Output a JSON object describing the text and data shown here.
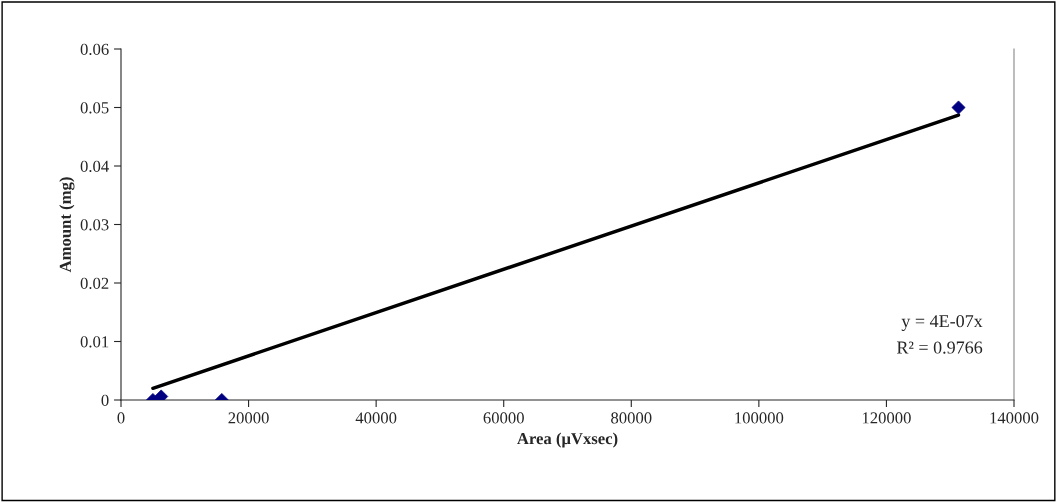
{
  "chart_data": {
    "type": "scatter",
    "xlabel": "Area (μVxsec)",
    "ylabel": "Amount (mg)",
    "series": [
      {
        "type": "scatter",
        "color": "#000080",
        "marker": "diamond",
        "x": [
          5000,
          6300,
          15800,
          131300
        ],
        "values": [
          0,
          0.0006,
          0,
          0.05
        ]
      },
      {
        "type": "line",
        "color": "#000000",
        "marker": "none",
        "line_style": "solid",
        "x": [
          5000,
          131300
        ],
        "values": [
          0.002,
          0.0487
        ]
      }
    ],
    "xlim": [
      0,
      140000
    ],
    "xticks": [
      0,
      20000,
      40000,
      60000,
      80000,
      100000,
      120000,
      140000
    ],
    "ylim": [
      0,
      0.06
    ],
    "yticks": [
      {
        "value": 0,
        "label": "0"
      },
      0.01,
      0.02,
      0.03,
      0.04,
      0.05,
      0.06
    ],
    "grid": false,
    "legend": false,
    "annotations": [
      "y = 4E-07x",
      "R² = 0.9766"
    ]
  }
}
